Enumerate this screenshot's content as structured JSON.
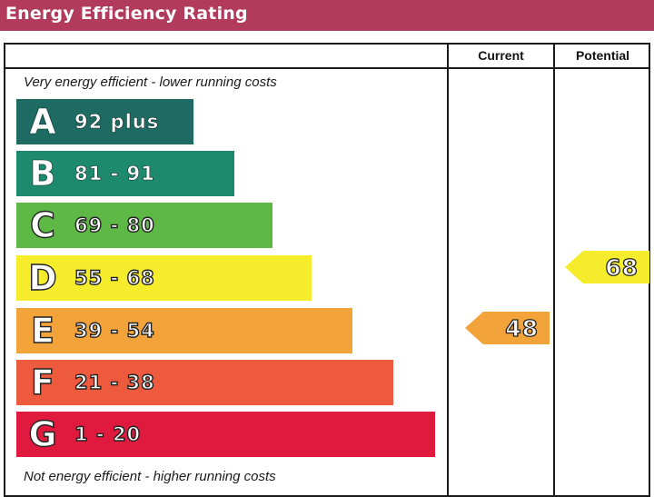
{
  "title": "Energy Efficiency Rating",
  "columns": {
    "current": "Current",
    "potential": "Potential"
  },
  "top_caption": "Very energy efficient - lower running costs",
  "bottom_caption": "Not energy efficient - higher running costs",
  "chart_data": {
    "type": "bar",
    "bands": [
      {
        "letter": "A",
        "range": "92  plus",
        "color": "#1d6b63"
      },
      {
        "letter": "B",
        "range": "81 - 91",
        "color": "#1d8a6e"
      },
      {
        "letter": "C",
        "range": "69 - 80",
        "color": "#5db845"
      },
      {
        "letter": "D",
        "range": "55 - 68",
        "color": "#f5ec2c"
      },
      {
        "letter": "E",
        "range": "39 - 54",
        "color": "#f2a33a"
      },
      {
        "letter": "F",
        "range": "21 - 38",
        "color": "#ee5a3e"
      },
      {
        "letter": "G",
        "range": "1 - 20",
        "color": "#e0193e"
      }
    ],
    "current": {
      "value": 48,
      "band": "E",
      "color": "#f2a33a"
    },
    "potential": {
      "value": 68,
      "band": "D",
      "color": "#f5ec2c"
    }
  }
}
